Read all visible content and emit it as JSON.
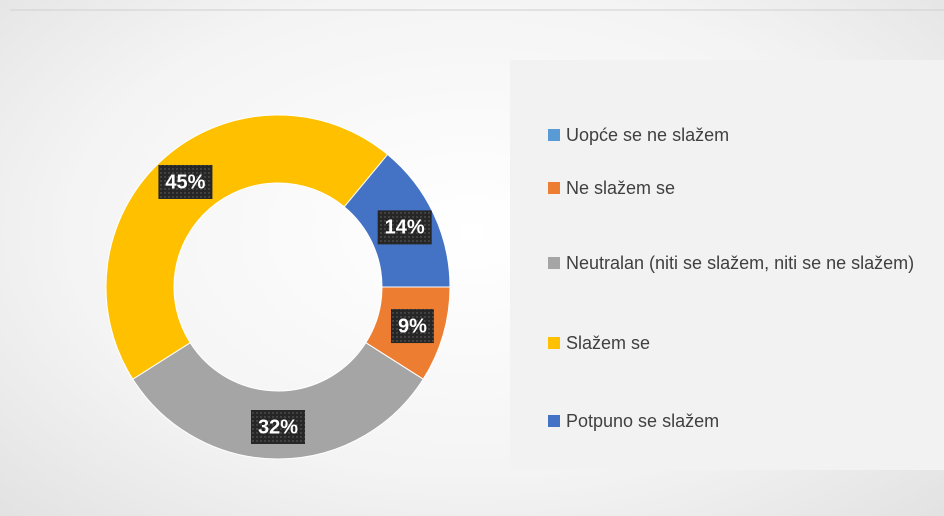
{
  "chart_data": {
    "type": "donut",
    "categories": [
      "Uopće se ne slažem",
      "Ne slažem se",
      "Neutralan (niti se slažem, niti se ne slažem)",
      "Slažem se",
      "Potpuno se slažem"
    ],
    "values": [
      0,
      9,
      32,
      45,
      14
    ],
    "value_labels": [
      null,
      "9%",
      "32%",
      "45%",
      "14%"
    ],
    "colors": [
      "#5b9bd5",
      "#ed7d31",
      "#a5a5a5",
      "#ffc000",
      "#4472c4"
    ],
    "legend": "right"
  }
}
